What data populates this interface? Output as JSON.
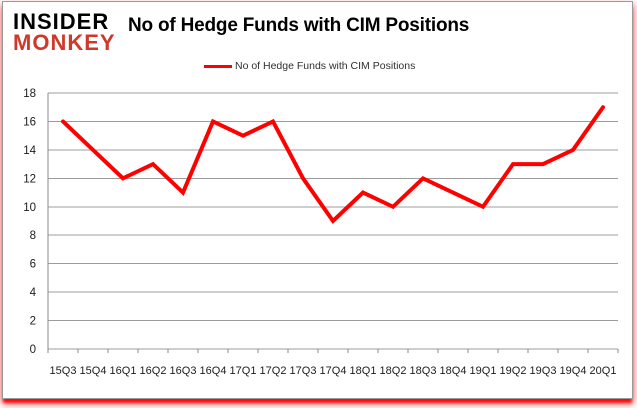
{
  "logo": {
    "line1": "INSIDER",
    "line2": "MONKEY",
    "line1_color": "#000000",
    "line2_color": "#d0392a"
  },
  "header": {
    "title": "No of Hedge Funds with CIM Positions"
  },
  "legend": {
    "label": "No of Hedge Funds with CIM Positions",
    "line_color": "#ff0000"
  },
  "colors": {
    "series_red": "#ff0000",
    "gridline_gray": "#9c9c9c",
    "card_bottom_glow": "#ff0000"
  },
  "chart_data": {
    "type": "line",
    "title": "No of Hedge Funds with CIM Positions",
    "categories": [
      "15Q3",
      "15Q4",
      "16Q1",
      "16Q2",
      "16Q3",
      "16Q4",
      "17Q1",
      "17Q2",
      "17Q3",
      "17Q4",
      "18Q1",
      "18Q2",
      "18Q3",
      "18Q4",
      "19Q1",
      "19Q2",
      "19Q3",
      "19Q4",
      "20Q1"
    ],
    "series": [
      {
        "name": "No of Hedge Funds with CIM Positions",
        "color": "#ff0000",
        "values": [
          16,
          14,
          12,
          13,
          11,
          16,
          15,
          16,
          12,
          9,
          11,
          10,
          12,
          11,
          10,
          13,
          13,
          14,
          17
        ]
      }
    ],
    "xlabel": "",
    "ylabel": "",
    "ylim": [
      0,
      18
    ],
    "ytick_step": 2,
    "yticks": [
      0,
      2,
      4,
      6,
      8,
      10,
      12,
      14,
      16,
      18
    ],
    "grid": "horizontal",
    "legend_position": "top-center"
  }
}
